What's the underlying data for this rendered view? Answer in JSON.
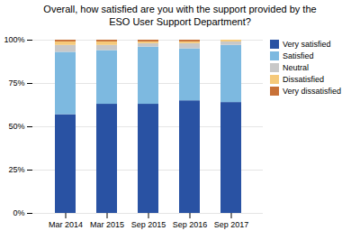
{
  "chart_data": {
    "type": "bar",
    "stacked": true,
    "title": "Overall, how satisfied are you with the support provided by the\nESO User Support Department?",
    "categories": [
      "Mar 2014",
      "Mar 2015",
      "Sep 2015",
      "Sep 2016",
      "Sep 2017"
    ],
    "series": [
      {
        "name": "Very satisfied",
        "color": "#2952a3",
        "values": [
          57,
          63,
          63,
          65,
          64
        ]
      },
      {
        "name": "Satisfied",
        "color": "#7db9e0",
        "values": [
          36,
          31,
          33,
          30,
          33
        ]
      },
      {
        "name": "Neutral",
        "color": "#c8c8c8",
        "values": [
          4,
          3,
          2,
          3,
          2
        ]
      },
      {
        "name": "Dissatisfied",
        "color": "#f5c97a",
        "values": [
          2,
          2,
          1,
          1,
          1
        ]
      },
      {
        "name": "Very dissatisfied",
        "color": "#c87137",
        "values": [
          1,
          1,
          1,
          1,
          0
        ]
      }
    ],
    "ylim": [
      0,
      100
    ],
    "yticks": [
      {
        "value": 0,
        "label": "0%"
      },
      {
        "value": 25,
        "label": "25%"
      },
      {
        "value": 50,
        "label": "50%"
      },
      {
        "value": 75,
        "label": "75%"
      },
      {
        "value": 100,
        "label": "100%"
      }
    ],
    "grid": true,
    "legend": "upper right"
  }
}
